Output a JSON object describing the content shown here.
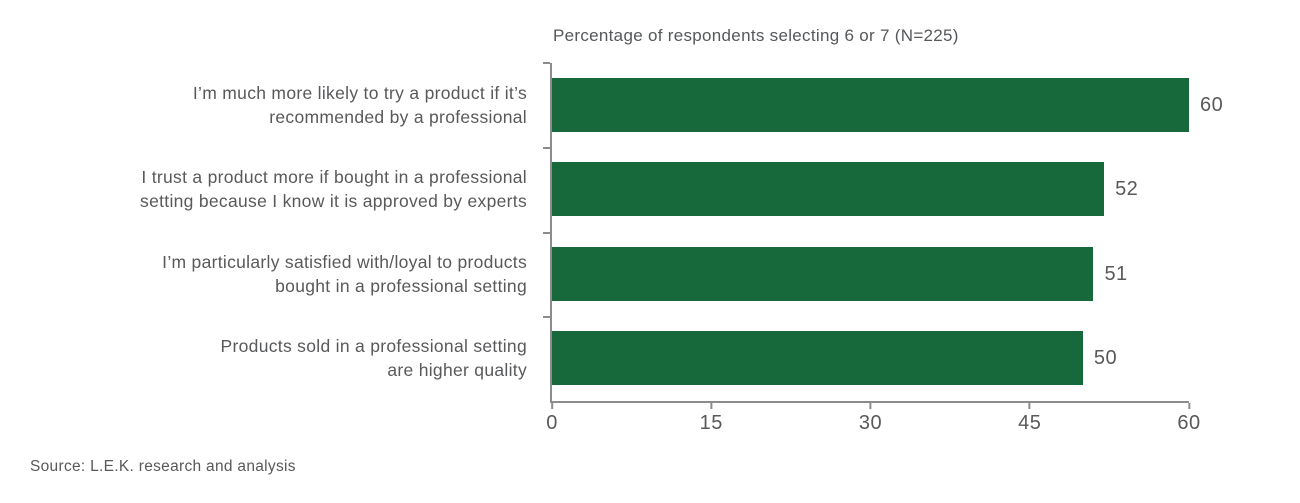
{
  "chart_data": {
    "type": "bar",
    "orientation": "horizontal",
    "title": "Percentage of respondents selecting 6 or 7 (N=225)",
    "categories": [
      "I’m much more likely to try a product if it’s recommended by a professional",
      "I trust a product more if bought in a professional setting because I know it is approved by experts",
      "I’m particularly satisfied with/loyal to products bought in a professional setting",
      "Products sold in a professional setting are higher quality"
    ],
    "category_lines": [
      [
        "I’m much more likely to try a product if it’s",
        "recommended by a professional"
      ],
      [
        "I trust a product more if bought in a professional",
        "setting because I know it is approved by experts"
      ],
      [
        "I’m particularly satisfied with/loyal to products",
        "bought in a professional setting"
      ],
      [
        "Products sold in a professional setting",
        "are higher quality"
      ]
    ],
    "values": [
      60,
      52,
      51,
      50
    ],
    "xlabel": "",
    "ylabel": "",
    "xlim": [
      0,
      60
    ],
    "x_ticks": [
      0,
      15,
      30,
      45,
      60
    ],
    "grid": false,
    "legend": false,
    "bar_color": "#17693b"
  },
  "footer": {
    "source": "Source: L.E.K. research and analysis"
  },
  "colors": {
    "bar_green": "#17693b",
    "text_gray": "#58595b",
    "axis_gray": "#8a8c8e",
    "background": "#ffffff"
  }
}
